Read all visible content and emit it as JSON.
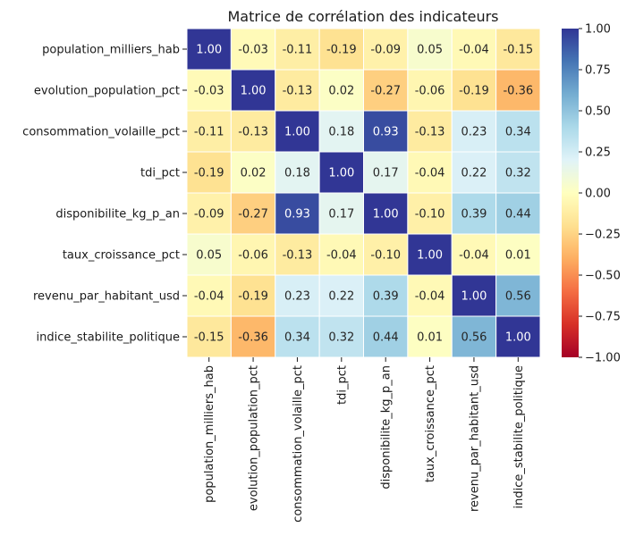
{
  "chart_data": {
    "type": "heatmap",
    "title": "Matrice de corrélation des indicateurs",
    "xlabel": "",
    "ylabel": "",
    "labels": [
      "population_milliers_hab",
      "evolution_population_pct",
      "consommation_volaille_pct",
      "tdi_pct",
      "disponibilite_kg_p_an",
      "taux_croissance_pct",
      "revenu_par_habitant_usd",
      "indice_stabilite_politique"
    ],
    "values": [
      [
        1.0,
        -0.03,
        -0.11,
        -0.19,
        -0.09,
        0.05,
        -0.04,
        -0.15
      ],
      [
        -0.03,
        1.0,
        -0.13,
        0.02,
        -0.27,
        -0.06,
        -0.19,
        -0.36
      ],
      [
        -0.11,
        -0.13,
        1.0,
        0.18,
        0.93,
        -0.13,
        0.23,
        0.34
      ],
      [
        -0.19,
        0.02,
        0.18,
        1.0,
        0.17,
        -0.04,
        0.22,
        0.32
      ],
      [
        -0.09,
        -0.27,
        0.93,
        0.17,
        1.0,
        -0.1,
        0.39,
        0.44
      ],
      [
        0.05,
        -0.06,
        -0.13,
        -0.04,
        -0.1,
        1.0,
        -0.04,
        0.01
      ],
      [
        -0.04,
        -0.19,
        0.23,
        0.22,
        0.39,
        -0.04,
        1.0,
        0.56
      ],
      [
        -0.15,
        -0.36,
        0.34,
        0.32,
        0.44,
        0.01,
        0.56,
        1.0
      ]
    ],
    "value_format": "0.00",
    "colormap": "RdYlBu",
    "vmin": -1.0,
    "vmax": 1.0,
    "colorbar_ticks": [
      "1.00",
      "0.75",
      "0.50",
      "0.25",
      "0.00",
      "−0.25",
      "−0.50",
      "−0.75",
      "−1.00"
    ],
    "colorbar_tick_values": [
      1.0,
      0.75,
      0.5,
      0.25,
      0.0,
      -0.25,
      -0.5,
      -0.75,
      -1.0
    ],
    "grid": false,
    "cell_borders": true,
    "legend": "colorbar-right"
  }
}
